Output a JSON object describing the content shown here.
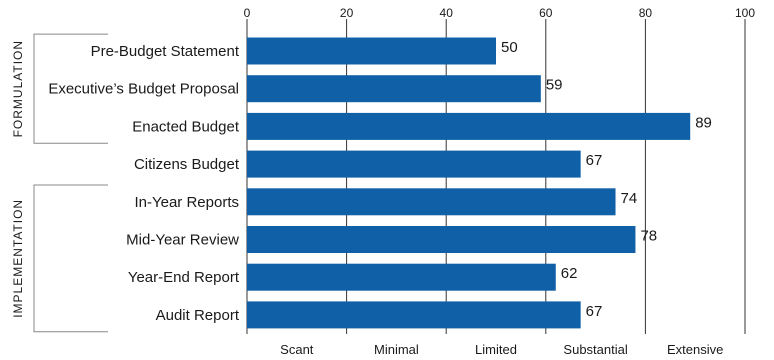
{
  "chart_data": {
    "type": "bar",
    "orientation": "horizontal",
    "categories": [
      "Pre-Budget Statement",
      "Executive’s Budget Proposal",
      "Enacted Budget",
      "Citizens Budget",
      "In-Year Reports",
      "Mid-Year Review",
      "Year-End Report",
      "Audit Report"
    ],
    "values": [
      50,
      59,
      89,
      67,
      74,
      78,
      62,
      67
    ],
    "xlim": [
      0,
      100
    ],
    "x_ticks": [
      0,
      20,
      40,
      60,
      80,
      100
    ],
    "x_ticks_position": "top",
    "bands": [
      "Scant",
      "Minimal",
      "Limited",
      "Substantial",
      "Extensive"
    ],
    "groups": [
      {
        "label": "FORMULATION",
        "categories": [
          "Pre-Budget Statement",
          "Executive’s Budget Proposal",
          "Enacted Budget"
        ]
      },
      {
        "label": "IMPLEMENTATION",
        "categories": [
          "In-Year Reports",
          "Mid-Year Review",
          "Year-End Report",
          "Audit Report"
        ]
      }
    ],
    "colors": {
      "bar": "#1060a8",
      "grid": "#333333",
      "text": "#1a1a1a"
    },
    "grid": true
  }
}
